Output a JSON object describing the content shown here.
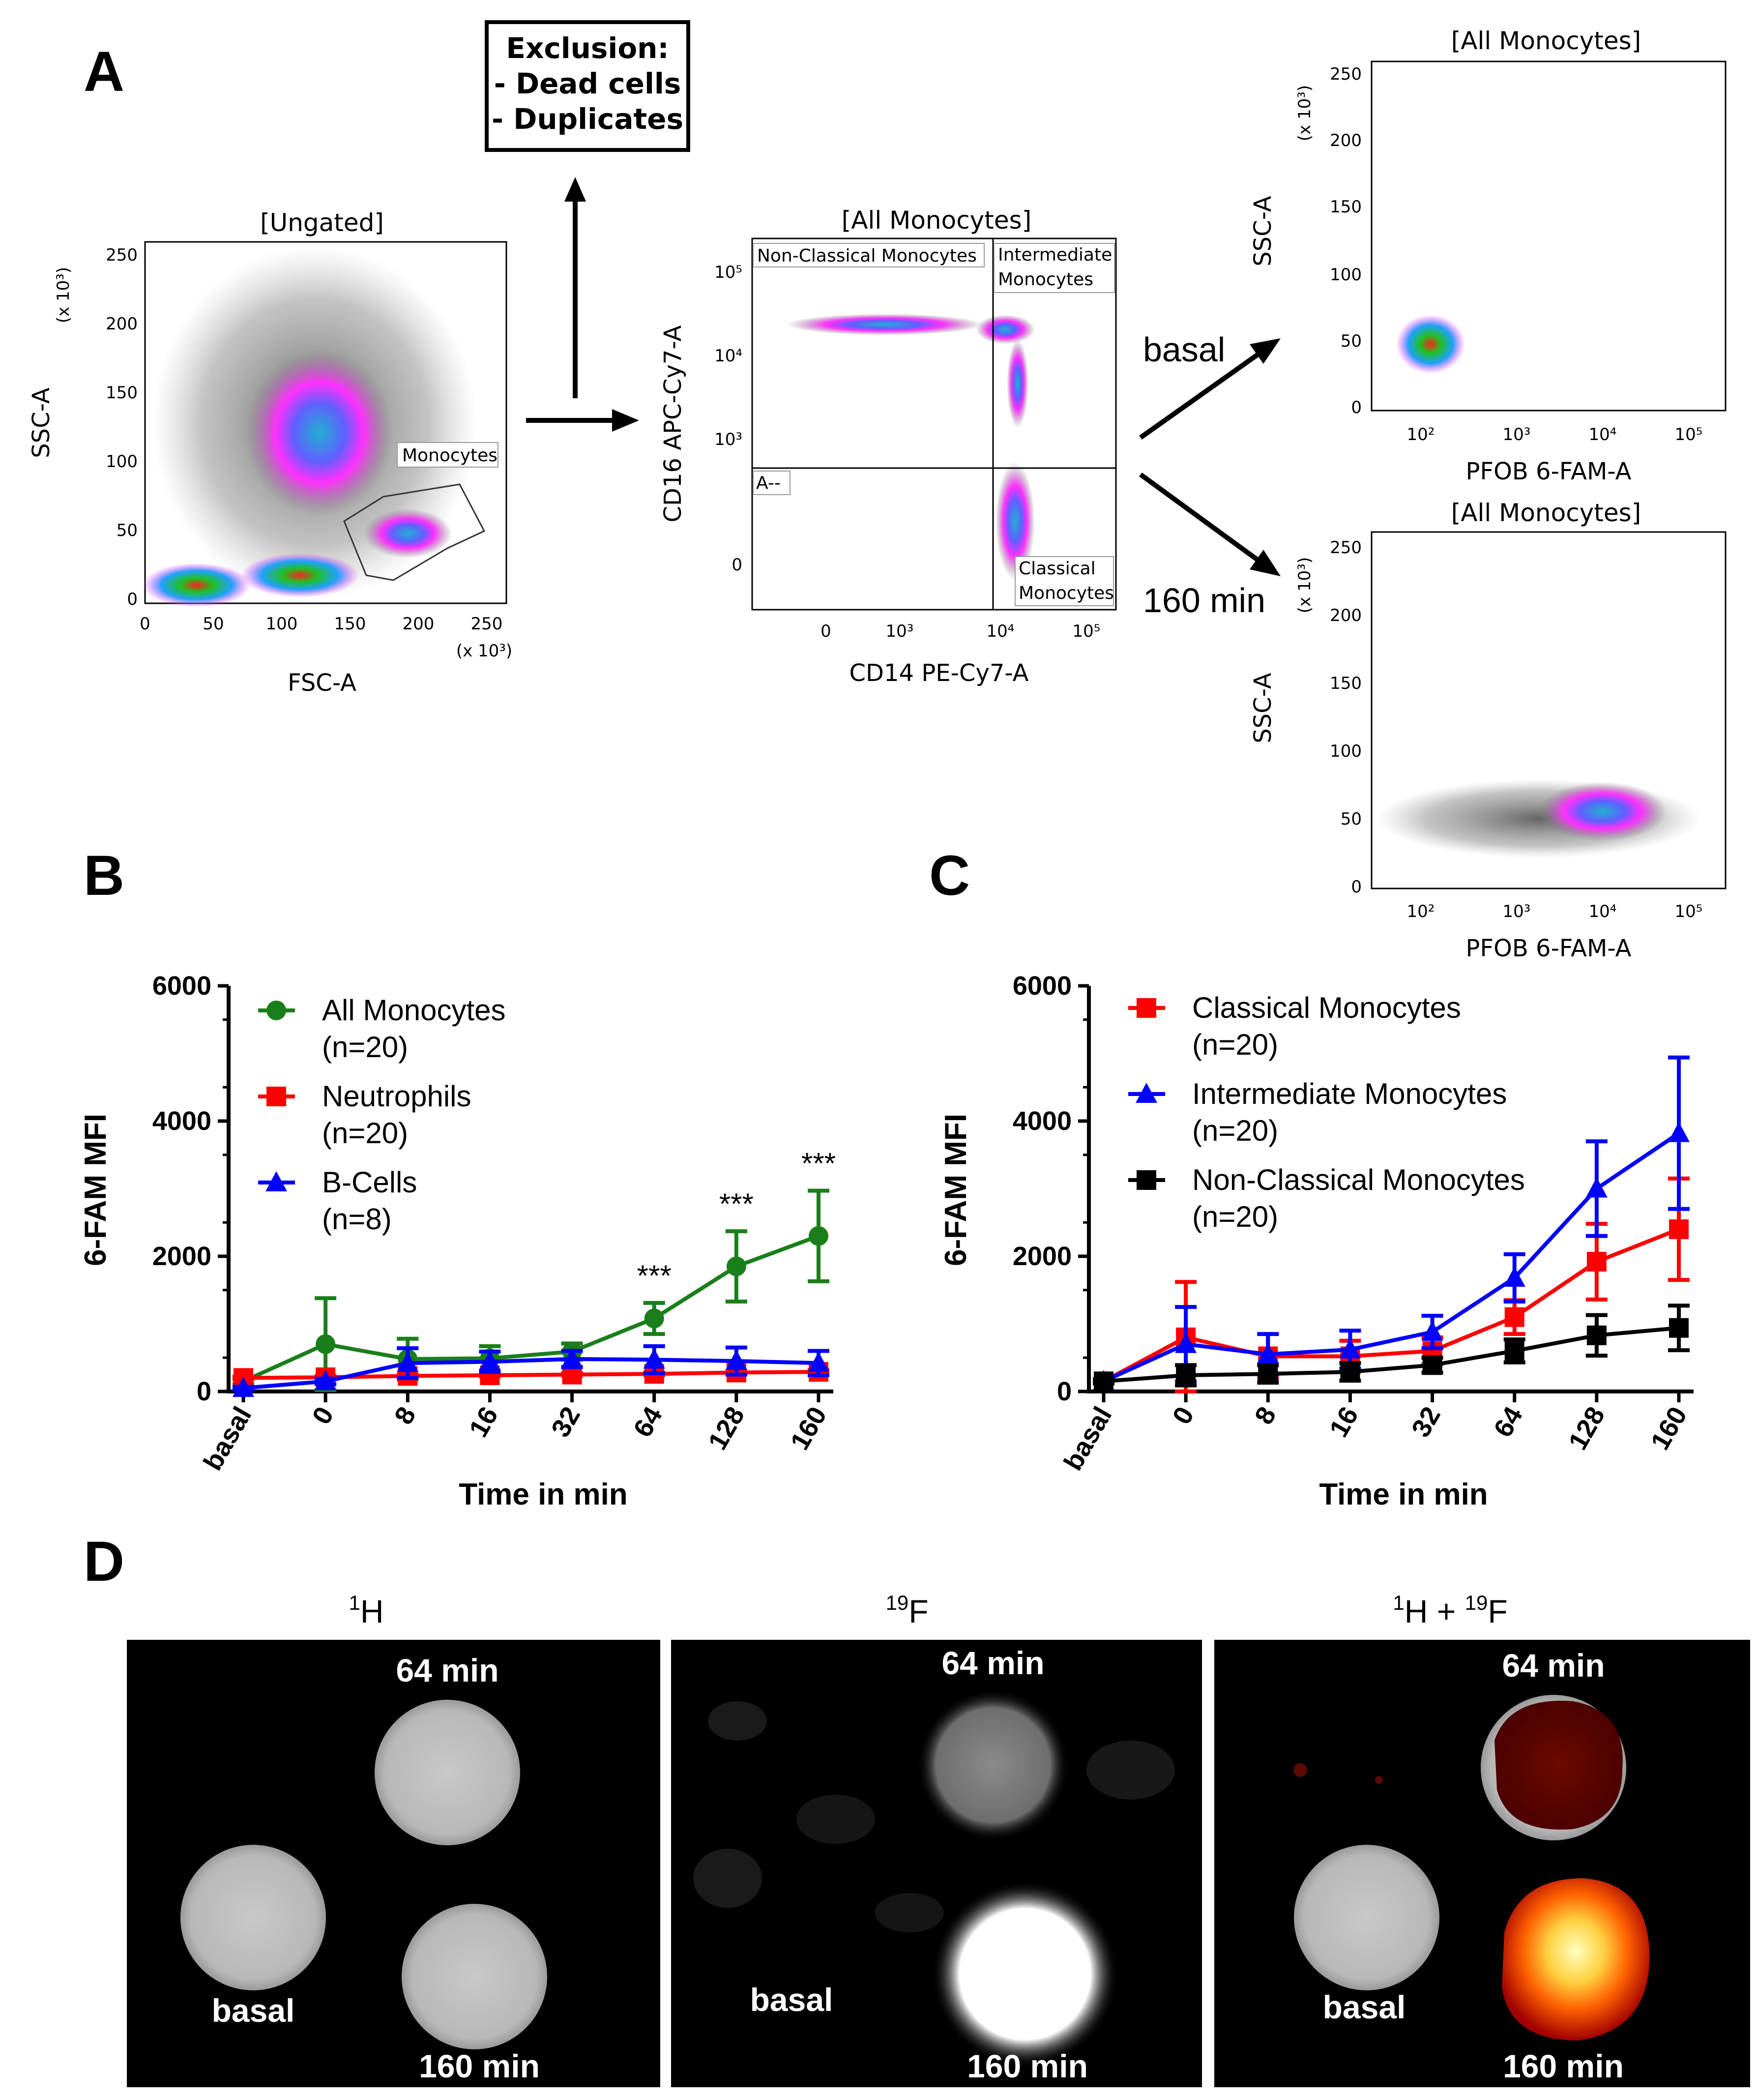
{
  "panel_labels": {
    "a": "A",
    "b": "B",
    "c": "C",
    "d": "D"
  },
  "exclusion_box": {
    "title": "Exclusion:",
    "line1": "- Dead cells",
    "line2": "- Duplicates"
  },
  "arrow_labels": {
    "basal": "basal",
    "min160": "160 min"
  },
  "flow_plots": {
    "ungated": {
      "title": "[Ungated]",
      "xlabel": "FSC-A",
      "ylabel": "SSC-A",
      "xunit": "(x 10³)",
      "yunit": "(x 10³)",
      "xticks": [
        "0",
        "50",
        "100",
        "150",
        "200",
        "250"
      ],
      "yticks": [
        "0",
        "50",
        "100",
        "150",
        "200",
        "250"
      ],
      "gate_label": "Monocytes"
    },
    "monocytes": {
      "title": "[All Monocytes]",
      "xlabel": "CD14 PE-Cy7-A",
      "ylabel": "CD16 APC-Cy7-A",
      "xticks": [
        "0",
        "10³",
        "10⁴",
        "10⁵"
      ],
      "yticks": [
        "0",
        "10³",
        "10⁴",
        "10⁵"
      ],
      "q_nonclassical": "Non-Classical Monocytes",
      "q_intermediate_1": "Intermediate",
      "q_intermediate_2": "Monocytes",
      "q_an": "A--",
      "q_classical_1": "Classical",
      "q_classical_2": "Monocytes"
    },
    "basal": {
      "title": "[All Monocytes]",
      "xlabel": "PFOB 6-FAM-A",
      "ylabel": "SSC-A",
      "yunit": "(x 10³)",
      "xticks": [
        "10²",
        "10³",
        "10⁴",
        "10⁵"
      ],
      "yticks": [
        "0",
        "50",
        "100",
        "150",
        "200",
        "250"
      ]
    },
    "min160": {
      "title": "[All Monocytes]",
      "xlabel": "PFOB 6-FAM-A",
      "ylabel": "SSC-A",
      "yunit": "(x 10³)",
      "xticks": [
        "10²",
        "10³",
        "10⁴",
        "10⁵"
      ],
      "yticks": [
        "0",
        "50",
        "100",
        "150",
        "200",
        "250"
      ]
    }
  },
  "chart_data": [
    {
      "type": "line",
      "panel": "B",
      "xlabel": "Time in min",
      "ylabel": "6-FAM MFI",
      "categories": [
        "basal",
        "0",
        "8",
        "16",
        "32",
        "64",
        "128",
        "160"
      ],
      "ylim": [
        0,
        6000
      ],
      "yticks": [
        "0",
        "2000",
        "4000",
        "6000"
      ],
      "significance": [
        "",
        "",
        "",
        "",
        "",
        "***",
        "***",
        "***"
      ],
      "series": [
        {
          "name": "All Monocytes",
          "n": "(n=20)",
          "color": "#1a7f1a",
          "marker": "circle",
          "values": [
            150,
            700,
            480,
            490,
            590,
            1080,
            1850,
            2300
          ],
          "errors": [
            40,
            680,
            300,
            180,
            120,
            230,
            520,
            670
          ]
        },
        {
          "name": "Neutrophils",
          "n": "(n=20)",
          "color": "#ff0000",
          "marker": "square",
          "values": [
            200,
            210,
            230,
            240,
            250,
            260,
            280,
            290
          ],
          "errors": [
            20,
            20,
            20,
            20,
            20,
            20,
            25,
            25
          ]
        },
        {
          "name": "B-Cells",
          "n": "(n=8)",
          "color": "#0000ff",
          "marker": "triangle",
          "values": [
            50,
            150,
            420,
            440,
            480,
            470,
            450,
            420
          ],
          "errors": [
            20,
            40,
            220,
            150,
            120,
            200,
            200,
            180
          ]
        }
      ]
    },
    {
      "type": "line",
      "panel": "C",
      "xlabel": "Time in min",
      "ylabel": "6-FAM MFI",
      "categories": [
        "basal",
        "0",
        "8",
        "16",
        "32",
        "64",
        "128",
        "160"
      ],
      "ylim": [
        0,
        6000
      ],
      "yticks": [
        "0",
        "2000",
        "4000",
        "6000"
      ],
      "series": [
        {
          "name": "Classical Monocytes",
          "n": "(n=20)",
          "color": "#ff0000",
          "marker": "square",
          "values": [
            150,
            800,
            520,
            520,
            600,
            1100,
            1920,
            2400
          ],
          "errors": [
            30,
            820,
            330,
            230,
            200,
            250,
            560,
            750
          ]
        },
        {
          "name": "Intermediate Monocytes",
          "n": "(n=20)",
          "color": "#0000ff",
          "marker": "triangle",
          "values": [
            150,
            700,
            550,
            620,
            880,
            1680,
            3000,
            3820
          ],
          "errors": [
            30,
            550,
            300,
            280,
            240,
            350,
            700,
            1120
          ]
        },
        {
          "name": "Non-Classical Monocytes",
          "n": "(n=20)",
          "color": "#000000",
          "marker": "square",
          "values": [
            150,
            240,
            260,
            290,
            390,
            600,
            830,
            940
          ],
          "errors": [
            30,
            150,
            130,
            130,
            110,
            170,
            300,
            330
          ]
        }
      ]
    }
  ],
  "mri": {
    "h_title_sup": "1",
    "h_title": "H",
    "f_title_sup": "19",
    "f_title": "F",
    "hf_title_sup1": "1",
    "hf_title_mid": "H + ",
    "hf_title_sup2": "19",
    "hf_title_end": "F",
    "label_64": "64 min",
    "label_basal": "basal",
    "label_160": "160 min"
  }
}
